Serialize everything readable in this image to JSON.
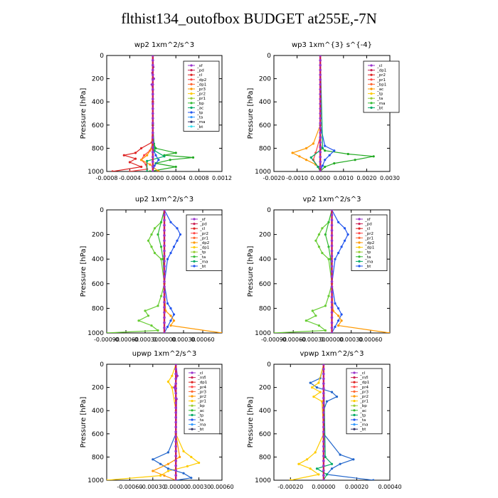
{
  "title": "flthist134_outofbox  BUDGET at255E,-7N",
  "chart_data": [
    {
      "type": "line",
      "title": "wp2   1xm^2/s^3",
      "ylabel": "Pressure  [hPa]",
      "ylim": [
        1000,
        0
      ],
      "yticks": [
        "0",
        "200",
        "400",
        "600",
        "800",
        "1000"
      ],
      "xlim": [
        -0.0008,
        0.0012
      ],
      "xticks": [
        "-0.0008",
        "-0.0004",
        "-0.0000",
        "0.0004",
        "0.0008",
        "0.0012"
      ],
      "legend": [
        "_sf",
        "_pd",
        "_cl",
        "_dp2",
        "_dp1",
        "_pr3",
        "_pr2",
        "_pr1",
        "_bp",
        "_ac",
        "_tp",
        "_ta",
        "_ma",
        "_bt"
      ],
      "series": [
        {
          "name": "_bp",
          "color": "#22aa22",
          "p": [
            0,
            200,
            400,
            600,
            700,
            760,
            800,
            840,
            860,
            880,
            900,
            930,
            960,
            1000
          ],
          "v": [
            0,
            0,
            0,
            0,
            0,
            2e-05,
            5e-05,
            0.0004,
            0.0002,
            0.0007,
            0.0003,
            5e-05,
            0.0004,
            -5e-05
          ]
        },
        {
          "name": "_dp2",
          "color": "#dd2222",
          "p": [
            0,
            200,
            400,
            600,
            750,
            800,
            840,
            860,
            890,
            920,
            960,
            1000
          ],
          "v": [
            0,
            0,
            0,
            0,
            -2e-05,
            -0.0002,
            -0.0003,
            -0.0005,
            -0.0003,
            -0.0004,
            -0.0002,
            -0.0007
          ]
        },
        {
          "name": "_dp1",
          "color": "#ff4444",
          "p": [
            0,
            600,
            760,
            820,
            860,
            900,
            940,
            980,
            1000
          ],
          "v": [
            0,
            0,
            0,
            -5e-05,
            -0.00015,
            -0.0002,
            -0.00012,
            -0.0001,
            -0.0004
          ]
        },
        {
          "name": "_pr2",
          "color": "#ff9900",
          "p": [
            0,
            600,
            800,
            860,
            900,
            940,
            1000
          ],
          "v": [
            0,
            0,
            -2e-05,
            -0.0001,
            -0.0002,
            -5e-05,
            0.0001
          ]
        },
        {
          "name": "_tp",
          "color": "#2255ee",
          "p": [
            0,
            600,
            800,
            860,
            900,
            950,
            1000
          ],
          "v": [
            0,
            0,
            0,
            5e-05,
            0.0001,
            3e-05,
            0
          ]
        },
        {
          "name": "_ac",
          "color": "#00aa66",
          "p": [
            0,
            600,
            820,
            870,
            910,
            1000
          ],
          "v": [
            0,
            0,
            3e-05,
            0.0002,
            -0.0001,
            -0.0001
          ]
        },
        {
          "name": "_sf",
          "color": "#9933cc",
          "p": [
            0,
            100,
            150,
            200,
            250,
            300,
            1000
          ],
          "v": [
            0,
            1e-05,
            -1e-05,
            2e-05,
            -2e-05,
            0,
            0
          ]
        },
        {
          "name": "_pr3",
          "color": "#cc2255",
          "p": [
            0,
            1000
          ],
          "v": [
            0,
            0
          ]
        }
      ]
    },
    {
      "type": "line",
      "title": "wp3   1xm^{3} s^{-4}",
      "ylabel": "Pressure  [hPa]",
      "ylim": [
        1000,
        0
      ],
      "yticks": [
        "0",
        "200",
        "400",
        "600",
        "800",
        "1000"
      ],
      "xlim": [
        -0.002,
        0.003
      ],
      "xticks": [
        "-0.0020",
        "-0.0010",
        "0.0000",
        "0.0010",
        "0.0020",
        "0.0030"
      ],
      "legend": [
        "_cl",
        "_dp1",
        "_pr2",
        "_pr1",
        "_bp1",
        "_ac",
        "_tp",
        "_ta",
        "_ma",
        "_bt"
      ],
      "series": [
        {
          "name": "_bp1",
          "color": "#22aa22",
          "p": [
            0,
            600,
            780,
            820,
            850,
            870,
            900,
            930,
            960,
            1000
          ],
          "v": [
            0,
            0,
            0,
            0.0002,
            0.0012,
            0.0023,
            0.0015,
            0.0006,
            0.0002,
            0
          ]
        },
        {
          "name": "_pr2",
          "color": "#ff9900",
          "p": [
            0,
            600,
            760,
            800,
            840,
            870,
            900,
            940,
            980,
            1000
          ],
          "v": [
            0,
            0,
            -0.0003,
            -0.0006,
            -0.0012,
            -0.0009,
            -0.0006,
            -0.0002,
            0,
            0
          ]
        },
        {
          "name": "_tp",
          "color": "#2255ee",
          "p": [
            0,
            600,
            780,
            820,
            860,
            900,
            950,
            1000
          ],
          "v": [
            0,
            0,
            0.0002,
            0.0006,
            0.0004,
            0.0002,
            0.0001,
            0
          ]
        },
        {
          "name": "_dp1",
          "color": "#ff4444",
          "p": [
            0,
            700,
            840,
            900,
            960,
            1000
          ],
          "v": [
            0,
            0,
            -0.0002,
            -0.0003,
            -0.0001,
            0
          ]
        },
        {
          "name": "_ac",
          "color": "#00aa66",
          "p": [
            0,
            800,
            880,
            960,
            1000
          ],
          "v": [
            0,
            0.0001,
            -0.0004,
            -0.0001,
            0
          ]
        },
        {
          "name": "_cl",
          "color": "#cc2255",
          "p": [
            0,
            1000
          ],
          "v": [
            0,
            0
          ]
        }
      ]
    },
    {
      "type": "line",
      "title": "up2   1xm^2/s^3",
      "ylabel": "Pressure  [hPa]",
      "ylim": [
        1000,
        0
      ],
      "yticks": [
        "0",
        "200",
        "400",
        "600",
        "800",
        "1000"
      ],
      "xlim": [
        -0.0009,
        0.0009
      ],
      "xticks": [
        "-0.00090",
        "-0.00060",
        "-0.00030",
        "0.00000",
        "0.00030",
        "0.00060"
      ],
      "legend": [
        "_sf",
        "_pd",
        "_cl",
        "_pr2",
        "_pr1",
        "_dp2",
        "_dp1",
        "_tp",
        "_ta",
        "_ma",
        "_bt"
      ],
      "series": [
        {
          "name": "_dp2",
          "color": "#66cc33",
          "p": [
            0,
            100,
            150,
            200,
            250,
            300,
            350,
            400,
            600,
            700,
            780,
            820,
            860,
            900,
            940,
            980,
            1000
          ],
          "v": [
            0,
            -5e-05,
            -0.00015,
            -0.0002,
            -0.00025,
            -0.0002,
            -0.00015,
            -5e-05,
            0,
            -5e-05,
            -0.0001,
            -0.0003,
            -0.00025,
            -0.0004,
            -0.0002,
            -0.0001,
            -0.0009
          ]
        },
        {
          "name": "_tp",
          "color": "#2255ee",
          "p": [
            0,
            100,
            150,
            200,
            250,
            300,
            350,
            400,
            600,
            760,
            800,
            850,
            900,
            950,
            1000
          ],
          "v": [
            0,
            0.0001,
            0.0002,
            0.00025,
            0.0002,
            0.00015,
            0.0001,
            5e-05,
            0,
            5e-05,
            0.0001,
            0.00015,
            0.0001,
            5e-05,
            0
          ]
        },
        {
          "name": "_dp1",
          "color": "#33bb33",
          "p": [
            0,
            100,
            200,
            300,
            400,
            600,
            1000
          ],
          "v": [
            0,
            -5e-05,
            -0.0001,
            -5e-05,
            -2e-05,
            0,
            0
          ]
        },
        {
          "name": "_pr2",
          "color": "#ff9900",
          "p": [
            0,
            600,
            820,
            860,
            900,
            940,
            1000
          ],
          "v": [
            0,
            0,
            2e-05,
            0.0001,
            0.00015,
            0.0001,
            0.0009
          ]
        },
        {
          "name": "_pd",
          "color": "#dd2222",
          "p": [
            0,
            1000
          ],
          "v": [
            0,
            0
          ]
        }
      ]
    },
    {
      "type": "line",
      "title": "vp2   1xm^2/s^3",
      "ylabel": "Pressure  [hPa]",
      "ylim": [
        1000,
        0
      ],
      "yticks": [
        "0",
        "200",
        "400",
        "600",
        "800",
        "1000"
      ],
      "xlim": [
        -0.0009,
        0.0009
      ],
      "xticks": [
        "-0.00090",
        "-0.00060",
        "-0.00030",
        "0.00000",
        "0.00030",
        "0.00060"
      ],
      "legend": [
        "_sf",
        "_pd",
        "_cl",
        "_pr2",
        "_pr1",
        "_dp2",
        "_dp1",
        "_tp",
        "_ta",
        "_ma",
        "_bt"
      ],
      "series": [
        {
          "name": "_dp2",
          "color": "#66cc33",
          "p": [
            0,
            100,
            150,
            200,
            250,
            300,
            350,
            400,
            600,
            700,
            780,
            820,
            860,
            900,
            940,
            980,
            1000
          ],
          "v": [
            0,
            -5e-05,
            -0.00015,
            -0.0002,
            -0.00025,
            -0.0002,
            -0.00015,
            -5e-05,
            0,
            -5e-05,
            -0.0001,
            -0.0003,
            -0.00025,
            -0.0004,
            -0.0002,
            -0.0001,
            -0.0009
          ]
        },
        {
          "name": "_tp",
          "color": "#2255ee",
          "p": [
            0,
            100,
            150,
            200,
            250,
            300,
            350,
            400,
            600,
            760,
            800,
            850,
            900,
            950,
            1000
          ],
          "v": [
            0,
            0.0001,
            0.0002,
            0.00025,
            0.0002,
            0.00015,
            0.0001,
            5e-05,
            0,
            5e-05,
            0.0001,
            0.00015,
            0.0001,
            5e-05,
            0
          ]
        },
        {
          "name": "_dp1",
          "color": "#33bb33",
          "p": [
            0,
            100,
            200,
            300,
            400,
            600,
            1000
          ],
          "v": [
            0,
            -5e-05,
            -0.0001,
            -5e-05,
            -2e-05,
            0,
            0
          ]
        },
        {
          "name": "_pr2",
          "color": "#ff9900",
          "p": [
            0,
            600,
            820,
            860,
            900,
            940,
            1000
          ],
          "v": [
            0,
            0,
            2e-05,
            0.0001,
            0.00015,
            0.0001,
            0.0009
          ]
        },
        {
          "name": "_pd",
          "color": "#dd2222",
          "p": [
            0,
            1000
          ],
          "v": [
            0,
            0
          ]
        }
      ]
    },
    {
      "type": "line",
      "title": "upwp   1xm^2/s^3",
      "ylabel": "Pressure  [hPa]",
      "ylim": [
        1000,
        0
      ],
      "yticks": [
        "0",
        "200",
        "400",
        "600",
        "800",
        "1000"
      ],
      "xlim": [
        -0.0009,
        0.0006
      ],
      "xticks": [
        "-0.00060",
        "-0.00030",
        "0.00000",
        "0.00030",
        "0.00060"
      ],
      "legend": [
        "_cl",
        "_mfl",
        "_dp1",
        "_pr4",
        "_pr3",
        "_pr2",
        "_pr1",
        "_bp",
        "_ac",
        "_tp",
        "_ta",
        "_ma",
        "_bt"
      ],
      "series": [
        {
          "name": "_pr2",
          "color": "#ffcc00",
          "p": [
            0,
            100,
            150,
            200,
            400,
            600,
            750,
            800,
            850,
            880,
            920,
            960,
            1000
          ],
          "v": [
            0,
            -5e-05,
            -0.0001,
            -5e-05,
            0,
            0,
            0.0001,
            0.0002,
            0.0003,
            0.00015,
            -0.0001,
            -0.0002,
            -0.0009
          ]
        },
        {
          "name": "_tp",
          "color": "#2266cc",
          "p": [
            0,
            600,
            760,
            820,
            860,
            900,
            940,
            980,
            1000
          ],
          "v": [
            0,
            0,
            -0.0001,
            -0.0003,
            -0.0002,
            -0.0001,
            0.0001,
            0.0002,
            0
          ]
        },
        {
          "name": "_pr1",
          "color": "#ff9900",
          "p": [
            0,
            600,
            800,
            860,
            920,
            960,
            1000
          ],
          "v": [
            0,
            0,
            5e-05,
            -0.0001,
            -0.0003,
            -0.00015,
            0
          ]
        },
        {
          "name": "_cl",
          "color": "#9933cc",
          "p": [
            0,
            100,
            200,
            300,
            1000
          ],
          "v": [
            0,
            2e-05,
            -2e-05,
            1e-05,
            0
          ]
        },
        {
          "name": "_dp1",
          "color": "#cc2255",
          "p": [
            0,
            1000
          ],
          "v": [
            0,
            0
          ]
        }
      ]
    },
    {
      "type": "line",
      "title": "vpwp   1xm^2/s^3",
      "ylabel": "Pressure  [hPa]",
      "ylim": [
        1000,
        0
      ],
      "yticks": [
        "0",
        "200",
        "400",
        "600",
        "800",
        "1000"
      ],
      "xlim": [
        -0.0003,
        0.0004
      ],
      "xticks": [
        "-0.00020",
        "0.00000",
        "0.00020",
        "0.00040"
      ],
      "legend": [
        "_cl",
        "_mfl",
        "_dp1",
        "_pr4",
        "_pr3",
        "_pr2",
        "_pr1",
        "_bp",
        "_ac",
        "_tp",
        "_ta",
        "_ma",
        "_bt"
      ],
      "series": [
        {
          "name": "_tp",
          "color": "#2266cc",
          "p": [
            0,
            120,
            160,
            200,
            240,
            280,
            320,
            400,
            600,
            780,
            820,
            860,
            900,
            950,
            1000
          ],
          "v": [
            0,
            -2e-05,
            -8e-05,
            -4e-05,
            5e-05,
            8e-05,
            2e-05,
            0,
            0,
            0.0001,
            0.00018,
            0.0001,
            5e-05,
            2e-05,
            0.0003
          ]
        },
        {
          "name": "_pr2",
          "color": "#ffcc00",
          "p": [
            0,
            160,
            200,
            240,
            280,
            320,
            600,
            760,
            820,
            860,
            900,
            950,
            1000
          ],
          "v": [
            0,
            -3e-05,
            -7e-05,
            -2e-05,
            -6e-05,
            -1e-05,
            0,
            -5e-05,
            -0.0001,
            -0.00015,
            -8e-05,
            -3e-05,
            -0.0002
          ]
        },
        {
          "name": "_ac",
          "color": "#00aa66",
          "p": [
            0,
            800,
            860,
            900,
            950,
            1000
          ],
          "v": [
            0,
            1e-05,
            5e-05,
            -4e-05,
            2e-05,
            0
          ]
        },
        {
          "name": "_cl",
          "color": "#9933cc",
          "p": [
            0,
            1000
          ],
          "v": [
            0,
            0
          ]
        }
      ]
    }
  ]
}
